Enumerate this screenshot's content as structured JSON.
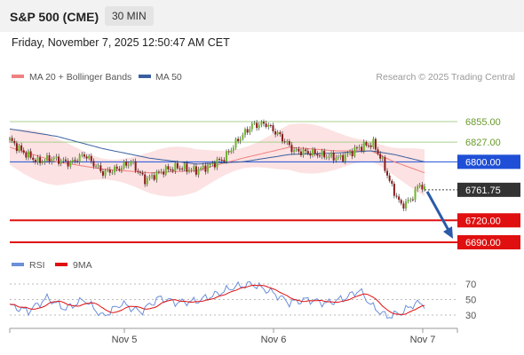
{
  "header": {
    "symbol": "S&P 500 (CME)",
    "timeframe": "30 MIN"
  },
  "datetime": "Friday, November 7, 2025 12:50:47 AM CET",
  "legend": {
    "ma20_bb": "MA 20 + Bollinger Bands",
    "ma50": "MA 50"
  },
  "copyright": "Research © 2025 Trading Central",
  "colors": {
    "ma20": "#f08080",
    "ma50": "#3a5fa0",
    "resistance": "#a8d08d",
    "pivot": "#1f4fd6",
    "support": "#e01010",
    "bands": "#fbd5d5",
    "candle_up": "#6fb52c",
    "candle_down": "#8c1a1a",
    "rsi": "#6b8fd8",
    "rsi_ma": "#e01010",
    "arrow": "#2b5aa8"
  },
  "chart_data": {
    "type": "candlestick",
    "title": "S&P 500 (CME) 30 MIN",
    "ylim": [
      6690,
      6875
    ],
    "x_labels": [
      "Nov 5",
      "Nov 6",
      "Nov 7"
    ],
    "levels": [
      {
        "value": 6855,
        "label": "6855.00",
        "kind": "resistance"
      },
      {
        "value": 6827,
        "label": "6827.00",
        "kind": "resistance"
      },
      {
        "value": 6800,
        "label": "6800.00",
        "kind": "pivot"
      },
      {
        "value": 6720,
        "label": "6720.00",
        "kind": "support"
      },
      {
        "value": 6690,
        "label": "6690.00",
        "kind": "support"
      }
    ],
    "last_price": {
      "value": 6761.75,
      "label": "6761.75"
    },
    "forecast": {
      "from": 6761.75,
      "to": 6690,
      "direction": "down"
    },
    "price_anchors": [
      [
        0,
        6830
      ],
      [
        5,
        6815
      ],
      [
        12,
        6800
      ],
      [
        18,
        6805
      ],
      [
        26,
        6798
      ],
      [
        32,
        6810
      ],
      [
        40,
        6785
      ],
      [
        46,
        6790
      ],
      [
        52,
        6800
      ],
      [
        58,
        6775
      ],
      [
        66,
        6788
      ],
      [
        72,
        6793
      ],
      [
        80,
        6788
      ],
      [
        86,
        6795
      ],
      [
        92,
        6805
      ],
      [
        98,
        6830
      ],
      [
        104,
        6850
      ],
      [
        110,
        6852
      ],
      [
        116,
        6835
      ],
      [
        122,
        6815
      ],
      [
        130,
        6812
      ],
      [
        136,
        6808
      ],
      [
        142,
        6805
      ],
      [
        146,
        6812
      ],
      [
        150,
        6820
      ],
      [
        156,
        6825
      ],
      [
        160,
        6800
      ],
      [
        164,
        6765
      ],
      [
        168,
        6740
      ],
      [
        172,
        6748
      ],
      [
        176,
        6770
      ],
      [
        178,
        6762
      ]
    ],
    "ma20_anchors": [
      [
        0,
        6820
      ],
      [
        20,
        6800
      ],
      [
        40,
        6790
      ],
      [
        60,
        6785
      ],
      [
        80,
        6788
      ],
      [
        100,
        6805
      ],
      [
        120,
        6820
      ],
      [
        140,
        6815
      ],
      [
        155,
        6815
      ],
      [
        165,
        6800
      ],
      [
        178,
        6785
      ]
    ],
    "ma50_anchors": [
      [
        0,
        6845
      ],
      [
        20,
        6835
      ],
      [
        40,
        6818
      ],
      [
        60,
        6805
      ],
      [
        80,
        6797
      ],
      [
        100,
        6800
      ],
      [
        120,
        6810
      ],
      [
        140,
        6812
      ],
      [
        155,
        6815
      ],
      [
        165,
        6810
      ],
      [
        178,
        6800
      ]
    ],
    "rsi": {
      "label": "RSI",
      "ma_label": "9MA",
      "ylim": [
        15,
        85
      ],
      "levels": [
        {
          "value": 70,
          "label": "70"
        },
        {
          "value": 50,
          "label": "50"
        },
        {
          "value": 30,
          "label": "30"
        }
      ],
      "anchors": [
        [
          0,
          42
        ],
        [
          8,
          35
        ],
        [
          16,
          52
        ],
        [
          24,
          38
        ],
        [
          32,
          50
        ],
        [
          40,
          28
        ],
        [
          48,
          45
        ],
        [
          56,
          34
        ],
        [
          64,
          52
        ],
        [
          72,
          46
        ],
        [
          80,
          48
        ],
        [
          88,
          56
        ],
        [
          96,
          66
        ],
        [
          104,
          70
        ],
        [
          112,
          60
        ],
        [
          120,
          46
        ],
        [
          128,
          50
        ],
        [
          136,
          45
        ],
        [
          144,
          52
        ],
        [
          150,
          62
        ],
        [
          156,
          40
        ],
        [
          162,
          28
        ],
        [
          168,
          33
        ],
        [
          174,
          45
        ],
        [
          178,
          44
        ]
      ]
    }
  }
}
